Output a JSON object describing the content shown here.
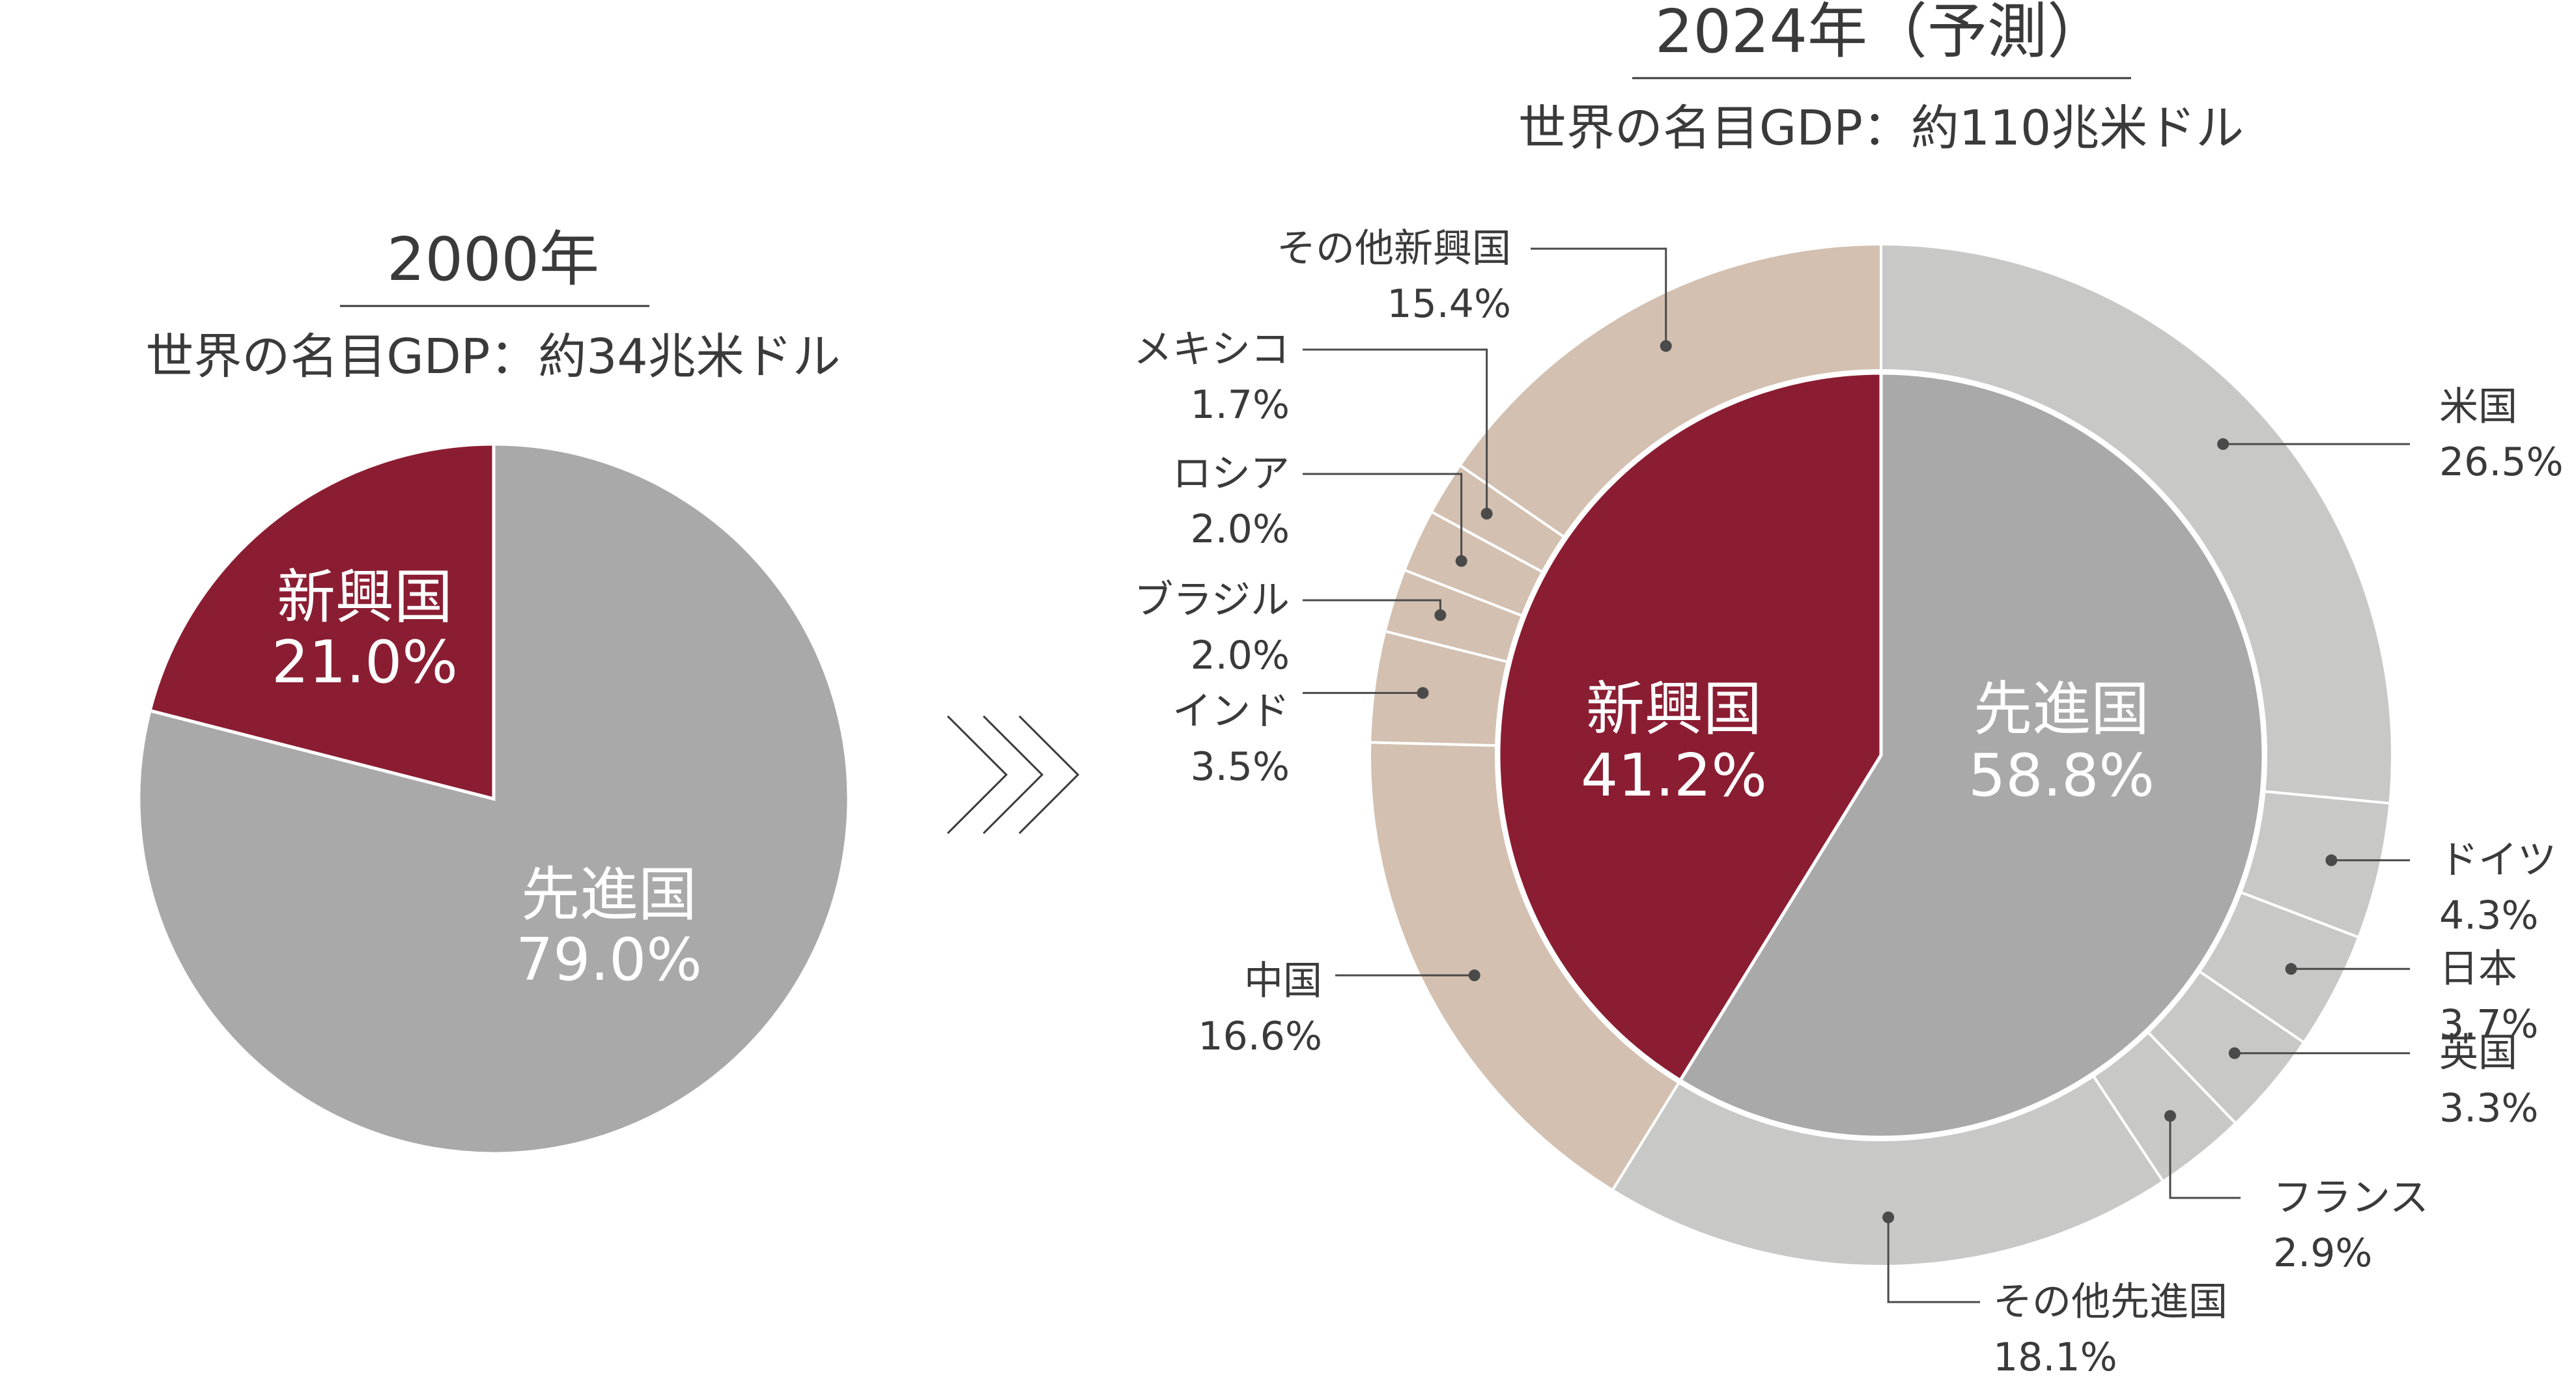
{
  "colors": {
    "emerging_inner": "#8b1d32",
    "advanced_inner": "#a9a9a9",
    "emerging_outer": "#d3c0b0",
    "advanced_outer": "#c8c8c7",
    "text": "#3a3a3a",
    "leader_line": "#4a4a4a"
  },
  "arrow_icon": "triple-chevron-right",
  "chart_data": [
    {
      "type": "pie",
      "title": "2000年",
      "subtitle": "世界の名目GDP：約34兆米ドル",
      "slices": [
        {
          "name": "先進国",
          "value": 79.0,
          "label": "79.0%",
          "color": "#a9a9a9"
        },
        {
          "name": "新興国",
          "value": 21.0,
          "label": "21.0%",
          "color": "#8b1d32"
        }
      ]
    },
    {
      "type": "pie",
      "title": "2024年（予測）",
      "subtitle": "世界の名目GDP：約110兆米ドル",
      "inner": [
        {
          "name": "先進国",
          "value": 58.8,
          "label": "58.8%",
          "color": "#a9a9a9"
        },
        {
          "name": "新興国",
          "value": 41.2,
          "label": "41.2%",
          "color": "#8b1d32"
        }
      ],
      "outer": [
        {
          "name": "米国",
          "value": 26.5,
          "label": "26.5%",
          "group": "先進国"
        },
        {
          "name": "ドイツ",
          "value": 4.3,
          "label": "4.3%",
          "group": "先進国"
        },
        {
          "name": "日本",
          "value": 3.7,
          "label": "3.7%",
          "group": "先進国"
        },
        {
          "name": "英国",
          "value": 3.3,
          "label": "3.3%",
          "group": "先進国"
        },
        {
          "name": "フランス",
          "value": 2.9,
          "label": "2.9%",
          "group": "先進国"
        },
        {
          "name": "その他先進国",
          "value": 18.1,
          "label": "18.1%",
          "group": "先進国"
        },
        {
          "name": "中国",
          "value": 16.6,
          "label": "16.6%",
          "group": "新興国"
        },
        {
          "name": "インド",
          "value": 3.5,
          "label": "3.5%",
          "group": "新興国"
        },
        {
          "name": "ブラジル",
          "value": 2.0,
          "label": "2.0%",
          "group": "新興国"
        },
        {
          "name": "ロシア",
          "value": 2.0,
          "label": "2.0%",
          "group": "新興国"
        },
        {
          "name": "メキシコ",
          "value": 1.7,
          "label": "1.7%",
          "group": "新興国"
        },
        {
          "name": "その他新興国",
          "value": 15.4,
          "label": "15.4%",
          "group": "新興国"
        }
      ]
    }
  ]
}
